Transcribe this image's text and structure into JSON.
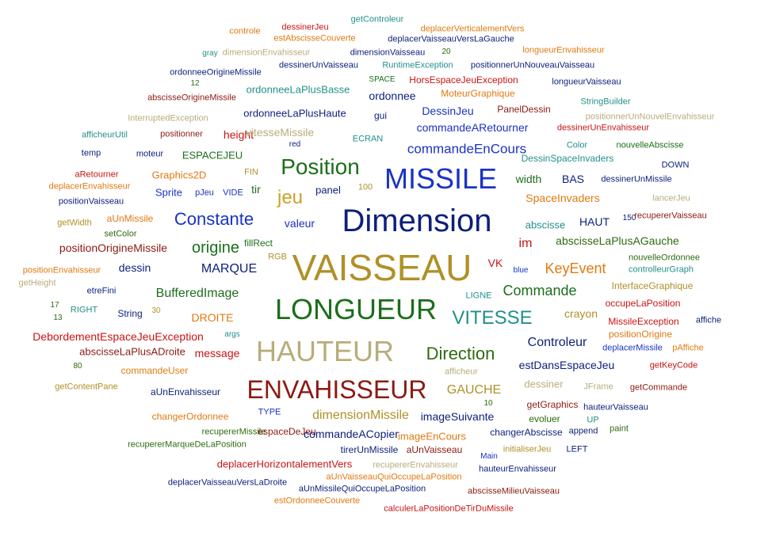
{
  "palette": {
    "navy": "#0b1f7a",
    "blue": "#1a33c4",
    "green": "#1b6e1b",
    "teal": "#22908a",
    "orange": "#e07a10",
    "red": "#c81414",
    "maroon": "#8b1a12",
    "olive": "#b09028",
    "gold": "#c9a227",
    "khaki": "#b8ad7a",
    "darkgreen": "#2e6b0f",
    "lightgold": "#d2b870"
  },
  "words": [
    {
      "text": "getControleur",
      "c": "teal",
      "s": 11
    },
    {
      "text": "deplacerVerticalementVers",
      "c": "orange",
      "s": 11
    },
    {
      "text": "dessinerJeu",
      "c": "red",
      "s": 11
    },
    {
      "text": "controle",
      "c": "orange",
      "s": 11
    },
    {
      "text": "estAbscisseCouverte",
      "c": "orange",
      "s": 11
    },
    {
      "text": "deplacerVaisseauVersLaGauche",
      "c": "navy",
      "s": 11
    },
    {
      "text": "gray",
      "c": "teal",
      "s": 10
    },
    {
      "text": "dimensionEnvahisseur",
      "c": "khaki",
      "s": 11
    },
    {
      "text": "dimensionVaisseau",
      "c": "navy",
      "s": 11
    },
    {
      "text": "20",
      "c": "darkgreen",
      "s": 10
    },
    {
      "text": "longueurEnvahisseur",
      "c": "orange",
      "s": 11
    },
    {
      "text": "dessinerUnVaisseau",
      "c": "navy",
      "s": 11
    },
    {
      "text": "RuntimeException",
      "c": "teal",
      "s": 11
    },
    {
      "text": "positionnerUnNouveauVaisseau",
      "c": "navy",
      "s": 11
    },
    {
      "text": "ordonneeOrigineMissile",
      "c": "navy",
      "s": 11
    },
    {
      "text": "SPACE",
      "c": "green",
      "s": 10
    },
    {
      "text": "HorsEspaceJeuException",
      "c": "red",
      "s": 12
    },
    {
      "text": "longueurVaisseau",
      "c": "navy",
      "s": 11
    },
    {
      "text": "12",
      "c": "darkgreen",
      "s": 10
    },
    {
      "text": "ordonneeLaPlusBasse",
      "c": "teal",
      "s": 13
    },
    {
      "text": "MoteurGraphique",
      "c": "orange",
      "s": 12
    },
    {
      "text": "abscisseOrigineMissile",
      "c": "maroon",
      "s": 11
    },
    {
      "text": "ordonnee",
      "c": "navy",
      "s": 14
    },
    {
      "text": "StringBuilder",
      "c": "teal",
      "s": 11
    },
    {
      "text": "InterruptedException",
      "c": "khaki",
      "s": 11
    },
    {
      "text": "ordonneeLaPlusHaute",
      "c": "navy",
      "s": 13
    },
    {
      "text": "DessinJeu",
      "c": "blue",
      "s": 14
    },
    {
      "text": "PanelDessin",
      "c": "maroon",
      "s": 12
    },
    {
      "text": "positionnerUnNouvelEnvahisseur",
      "c": "khaki",
      "s": 11
    },
    {
      "text": "gui",
      "c": "navy",
      "s": 12
    },
    {
      "text": "commandeARetourner",
      "c": "blue",
      "s": 14
    },
    {
      "text": "dessinerUnEnvahisseur",
      "c": "red",
      "s": 11
    },
    {
      "text": "afficheurUtil",
      "c": "teal",
      "s": 11
    },
    {
      "text": "positionner",
      "c": "maroon",
      "s": 11
    },
    {
      "text": "height",
      "c": "red",
      "s": 14
    },
    {
      "text": "vitesseMissile",
      "c": "khaki",
      "s": 14
    },
    {
      "text": "ECRAN",
      "c": "teal",
      "s": 11
    },
    {
      "text": "red",
      "c": "navy",
      "s": 10
    },
    {
      "text": "commandeEnCours",
      "c": "blue",
      "s": 17
    },
    {
      "text": "Color",
      "c": "teal",
      "s": 11
    },
    {
      "text": "nouvelleAbscisse",
      "c": "green",
      "s": 11
    },
    {
      "text": "temp",
      "c": "navy",
      "s": 11
    },
    {
      "text": "moteur",
      "c": "navy",
      "s": 11
    },
    {
      "text": "ESPACEJEU",
      "c": "green",
      "s": 13
    },
    {
      "text": "DessinSpaceInvaders",
      "c": "teal",
      "s": 12
    },
    {
      "text": "DOWN",
      "c": "navy",
      "s": 11
    },
    {
      "text": "Position",
      "c": "green",
      "s": 28
    },
    {
      "text": "MISSILE",
      "c": "blue",
      "s": 36
    },
    {
      "text": "aRetourner",
      "c": "red",
      "s": 11
    },
    {
      "text": "FIN",
      "c": "olive",
      "s": 11
    },
    {
      "text": "Graphics2D",
      "c": "orange",
      "s": 13
    },
    {
      "text": "width",
      "c": "green",
      "s": 14
    },
    {
      "text": "BAS",
      "c": "navy",
      "s": 14
    },
    {
      "text": "dessinerUnMissile",
      "c": "navy",
      "s": 11
    },
    {
      "text": "deplacerEnvahisseur",
      "c": "orange",
      "s": 11
    },
    {
      "text": "tir",
      "c": "green",
      "s": 14
    },
    {
      "text": "Sprite",
      "c": "blue",
      "s": 13
    },
    {
      "text": "pJeu",
      "c": "blue",
      "s": 11
    },
    {
      "text": "VIDE",
      "c": "blue",
      "s": 11
    },
    {
      "text": "jeu",
      "c": "gold",
      "s": 24
    },
    {
      "text": "panel",
      "c": "navy",
      "s": 13
    },
    {
      "text": "100",
      "c": "olive",
      "s": 11
    },
    {
      "text": "SpaceInvaders",
      "c": "orange",
      "s": 14
    },
    {
      "text": "lancerJeu",
      "c": "khaki",
      "s": 11
    },
    {
      "text": "positionVaisseau",
      "c": "navy",
      "s": 11
    },
    {
      "text": "Dimension",
      "c": "navy",
      "s": 40
    },
    {
      "text": "getWidth",
      "c": "olive",
      "s": 11
    },
    {
      "text": "aUnMissile",
      "c": "orange",
      "s": 12
    },
    {
      "text": "Constante",
      "c": "blue",
      "s": 22
    },
    {
      "text": "valeur",
      "c": "blue",
      "s": 14
    },
    {
      "text": "abscisse",
      "c": "teal",
      "s": 13
    },
    {
      "text": "HAUT",
      "c": "navy",
      "s": 14
    },
    {
      "text": "150",
      "c": "navy",
      "s": 10
    },
    {
      "text": "recupererVaisseau",
      "c": "maroon",
      "s": 11
    },
    {
      "text": "setColor",
      "c": "darkgreen",
      "s": 11
    },
    {
      "text": "fillRect",
      "c": "green",
      "s": 12
    },
    {
      "text": "im",
      "c": "red",
      "s": 16
    },
    {
      "text": "abscisseLaPlusAGauche",
      "c": "darkgreen",
      "s": 14
    },
    {
      "text": "positionOrigineMissile",
      "c": "maroon",
      "s": 14
    },
    {
      "text": "origine",
      "c": "green",
      "s": 20
    },
    {
      "text": "RGB",
      "c": "olive",
      "s": 11
    },
    {
      "text": "nouvelleOrdonnee",
      "c": "darkgreen",
      "s": 11
    },
    {
      "text": "dessin",
      "c": "navy",
      "s": 14
    },
    {
      "text": "VK",
      "c": "red",
      "s": 14
    },
    {
      "text": "KeyEvent",
      "c": "orange",
      "s": 18
    },
    {
      "text": "controlleurGraph",
      "c": "teal",
      "s": 11
    },
    {
      "text": "positionEnvahisseur",
      "c": "orange",
      "s": 11
    },
    {
      "text": "MARQUE",
      "c": "navy",
      "s": 16
    },
    {
      "text": "VAISSEAU",
      "c": "olive",
      "s": 46
    },
    {
      "text": "blue",
      "c": "blue",
      "s": 10
    },
    {
      "text": "getHeight",
      "c": "khaki",
      "s": 11
    },
    {
      "text": "etreFini",
      "c": "navy",
      "s": 11
    },
    {
      "text": "Commande",
      "c": "green",
      "s": 18
    },
    {
      "text": "InterfaceGraphique",
      "c": "olive",
      "s": 12
    },
    {
      "text": "BufferedImage",
      "c": "green",
      "s": 16
    },
    {
      "text": "LIGNE",
      "c": "teal",
      "s": 11
    },
    {
      "text": "occupeLaPosition",
      "c": "red",
      "s": 12
    },
    {
      "text": "17",
      "c": "darkgreen",
      "s": 10
    },
    {
      "text": "LONGUEUR",
      "c": "green",
      "s": 36
    },
    {
      "text": "RIGHT",
      "c": "teal",
      "s": 11
    },
    {
      "text": "String",
      "c": "navy",
      "s": 12
    },
    {
      "text": "30",
      "c": "olive",
      "s": 10
    },
    {
      "text": "crayon",
      "c": "olive",
      "s": 14
    },
    {
      "text": "positionOrigine",
      "c": "orange",
      "s": 12
    },
    {
      "text": "13",
      "c": "darkgreen",
      "s": 10
    },
    {
      "text": "DROITE",
      "c": "orange",
      "s": 14
    },
    {
      "text": "VITESSE",
      "c": "teal",
      "s": 24
    },
    {
      "text": "MissileException",
      "c": "red",
      "s": 12
    },
    {
      "text": "affiche",
      "c": "navy",
      "s": 11
    },
    {
      "text": "DebordementEspaceJeuException",
      "c": "red",
      "s": 14
    },
    {
      "text": "args",
      "c": "teal",
      "s": 10
    },
    {
      "text": "Controleur",
      "c": "navy",
      "s": 16
    },
    {
      "text": "deplacerMissile",
      "c": "blue",
      "s": 11
    },
    {
      "text": "pAffiche",
      "c": "orange",
      "s": 11
    },
    {
      "text": "abscisseLaPlusADroite",
      "c": "maroon",
      "s": 13
    },
    {
      "text": "message",
      "c": "red",
      "s": 14
    },
    {
      "text": "HAUTEUR",
      "c": "khaki",
      "s": 36
    },
    {
      "text": "Direction",
      "c": "darkgreen",
      "s": 22
    },
    {
      "text": "80",
      "c": "darkgreen",
      "s": 10
    },
    {
      "text": "estDansEspaceJeu",
      "c": "navy",
      "s": 14
    },
    {
      "text": "getKeyCode",
      "c": "red",
      "s": 11
    },
    {
      "text": "commandeUser",
      "c": "orange",
      "s": 12
    },
    {
      "text": "afficheur",
      "c": "khaki",
      "s": 11
    },
    {
      "text": "ENVAHISSEUR",
      "c": "maroon",
      "s": 32
    },
    {
      "text": "getContentPane",
      "c": "olive",
      "s": 11
    },
    {
      "text": "aUnEnvahisseur",
      "c": "navy",
      "s": 12
    },
    {
      "text": "GAUCHE",
      "c": "olive",
      "s": 16
    },
    {
      "text": "dessiner",
      "c": "khaki",
      "s": 13
    },
    {
      "text": "JFrame",
      "c": "khaki",
      "s": 11
    },
    {
      "text": "getCommande",
      "c": "maroon",
      "s": 11
    },
    {
      "text": "getGraphics",
      "c": "maroon",
      "s": 12
    },
    {
      "text": "10",
      "c": "darkgreen",
      "s": 10
    },
    {
      "text": "hauteurVaisseau",
      "c": "navy",
      "s": 11
    },
    {
      "text": "changerOrdonnee",
      "c": "orange",
      "s": 12
    },
    {
      "text": "TYPE",
      "c": "blue",
      "s": 11
    },
    {
      "text": "dimensionMissile",
      "c": "olive",
      "s": 16
    },
    {
      "text": "imageSuivante",
      "c": "navy",
      "s": 14
    },
    {
      "text": "evoluer",
      "c": "darkgreen",
      "s": 12
    },
    {
      "text": "UP",
      "c": "teal",
      "s": 11
    },
    {
      "text": "recupererMissile",
      "c": "darkgreen",
      "s": 11
    },
    {
      "text": "espaceDeJeu",
      "c": "maroon",
      "s": 12
    },
    {
      "text": "commandeACopier",
      "c": "navy",
      "s": 14
    },
    {
      "text": "imageEnCours",
      "c": "orange",
      "s": 13
    },
    {
      "text": "changerAbscisse",
      "c": "navy",
      "s": 12
    },
    {
      "text": "append",
      "c": "navy",
      "s": 11
    },
    {
      "text": "paint",
      "c": "darkgreen",
      "s": 11
    },
    {
      "text": "recupererMarqueDeLaPosition",
      "c": "darkgreen",
      "s": 11
    },
    {
      "text": "tirerUnMissile",
      "c": "navy",
      "s": 12
    },
    {
      "text": "aUnVaisseau",
      "c": "maroon",
      "s": 12
    },
    {
      "text": "initialiserJeu",
      "c": "olive",
      "s": 11
    },
    {
      "text": "LEFT",
      "c": "navy",
      "s": 11
    },
    {
      "text": "Main",
      "c": "blue",
      "s": 10
    },
    {
      "text": "deplacerHorizontalementVers",
      "c": "red",
      "s": 13
    },
    {
      "text": "recupererEnvahisseur",
      "c": "khaki",
      "s": 11
    },
    {
      "text": "hauteurEnvahisseur",
      "c": "navy",
      "s": 11
    },
    {
      "text": "aUnVaisseauQuiOccupeLaPosition",
      "c": "orange",
      "s": 11
    },
    {
      "text": "deplacerVaisseauVersLaDroite",
      "c": "navy",
      "s": 11
    },
    {
      "text": "aUnMissileQuiOccupeLaPosition",
      "c": "navy",
      "s": 11
    },
    {
      "text": "abscisseMilieuVaisseau",
      "c": "maroon",
      "s": 11
    },
    {
      "text": "estOrdonneeCouverte",
      "c": "orange",
      "s": 11
    },
    {
      "text": "calculerLaPositionDeTirDuMissile",
      "c": "red",
      "s": 11
    }
  ]
}
